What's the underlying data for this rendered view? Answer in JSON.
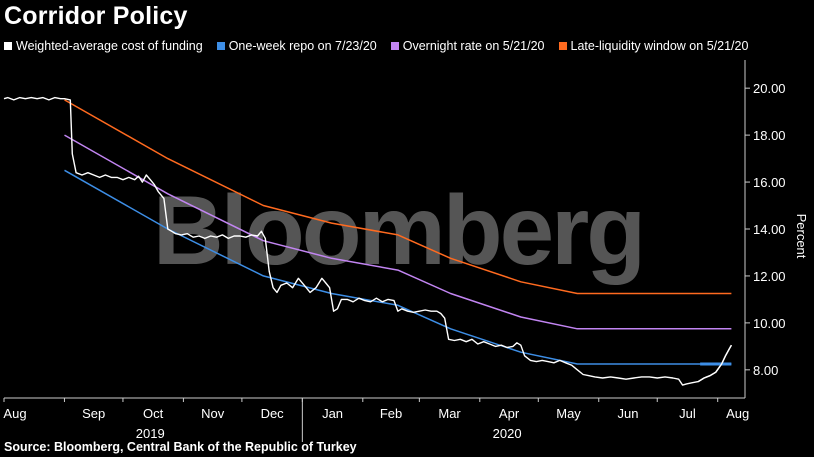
{
  "title": "Corridor Policy",
  "source": "Source: Bloomberg, Central Bank of the Republic of Turkey",
  "watermark": "Bloomberg",
  "colors": {
    "background": "#000000",
    "weighted": "#ffffff",
    "repo": "#3d8ee6",
    "overnight": "#c285f2",
    "late": "#ff6a1f",
    "axis": "#cccccc",
    "watermark": "#555555"
  },
  "chart_data": {
    "type": "line",
    "title": "Corridor Policy",
    "ylabel": "Percent",
    "xlabel": "",
    "ylim": [
      6.8,
      21.2
    ],
    "yticks": [
      "8.00",
      "10.00",
      "12.00",
      "14.00",
      "16.00",
      "18.00",
      "20.00"
    ],
    "x_domain": [
      "2019-08-01",
      "2020-08-15"
    ],
    "months": [
      {
        "label": "Aug",
        "date": "2019-08-01"
      },
      {
        "label": "Sep",
        "date": "2019-09-01"
      },
      {
        "label": "Oct",
        "date": "2019-10-01"
      },
      {
        "label": "Nov",
        "date": "2019-11-01"
      },
      {
        "label": "Dec",
        "date": "2019-12-01"
      },
      {
        "label": "Jan",
        "date": "2020-01-01"
      },
      {
        "label": "Feb",
        "date": "2020-02-01"
      },
      {
        "label": "Mar",
        "date": "2020-03-01"
      },
      {
        "label": "Apr",
        "date": "2020-04-01"
      },
      {
        "label": "May",
        "date": "2020-05-01"
      },
      {
        "label": "Jun",
        "date": "2020-06-01"
      },
      {
        "label": "Jul",
        "date": "2020-07-01"
      },
      {
        "label": "Aug",
        "date": "2020-08-01"
      }
    ],
    "years": [
      {
        "label": "2019",
        "date": "2019-10-15"
      },
      {
        "label": "2020",
        "date": "2020-04-15"
      }
    ],
    "year_divider": "2020-01-01",
    "series": [
      {
        "name": "Weighted-average cost of funding",
        "color": "#ffffff",
        "points": [
          [
            "2019-08-01",
            19.55
          ],
          [
            "2019-08-03",
            19.6
          ],
          [
            "2019-08-06",
            19.5
          ],
          [
            "2019-08-09",
            19.6
          ],
          [
            "2019-08-12",
            19.55
          ],
          [
            "2019-08-15",
            19.6
          ],
          [
            "2019-08-18",
            19.55
          ],
          [
            "2019-08-21",
            19.6
          ],
          [
            "2019-08-24",
            19.5
          ],
          [
            "2019-08-27",
            19.6
          ],
          [
            "2019-08-30",
            19.55
          ],
          [
            "2019-09-01",
            19.55
          ],
          [
            "2019-09-04",
            19.5
          ],
          [
            "2019-09-05",
            17.2
          ],
          [
            "2019-09-07",
            16.4
          ],
          [
            "2019-09-10",
            16.3
          ],
          [
            "2019-09-13",
            16.4
          ],
          [
            "2019-09-16",
            16.3
          ],
          [
            "2019-09-19",
            16.2
          ],
          [
            "2019-09-22",
            16.3
          ],
          [
            "2019-09-25",
            16.2
          ],
          [
            "2019-09-28",
            16.2
          ],
          [
            "2019-10-01",
            16.1
          ],
          [
            "2019-10-04",
            16.2
          ],
          [
            "2019-10-07",
            16.1
          ],
          [
            "2019-10-09",
            16.25
          ],
          [
            "2019-10-11",
            16.0
          ],
          [
            "2019-10-13",
            16.3
          ],
          [
            "2019-10-15",
            16.1
          ],
          [
            "2019-10-17",
            15.9
          ],
          [
            "2019-10-19",
            15.6
          ],
          [
            "2019-10-22",
            15.3
          ],
          [
            "2019-10-24",
            14.0
          ],
          [
            "2019-10-26",
            13.9
          ],
          [
            "2019-10-28",
            13.8
          ],
          [
            "2019-10-31",
            13.75
          ],
          [
            "2019-11-03",
            13.8
          ],
          [
            "2019-11-06",
            13.65
          ],
          [
            "2019-11-09",
            13.7
          ],
          [
            "2019-11-12",
            13.6
          ],
          [
            "2019-11-15",
            13.7
          ],
          [
            "2019-11-18",
            13.65
          ],
          [
            "2019-11-21",
            13.75
          ],
          [
            "2019-11-24",
            13.6
          ],
          [
            "2019-11-27",
            13.7
          ],
          [
            "2019-11-30",
            13.7
          ],
          [
            "2019-12-03",
            13.65
          ],
          [
            "2019-12-06",
            13.75
          ],
          [
            "2019-12-09",
            13.7
          ],
          [
            "2019-12-11",
            13.9
          ],
          [
            "2019-12-13",
            13.6
          ],
          [
            "2019-12-15",
            12.2
          ],
          [
            "2019-12-17",
            11.5
          ],
          [
            "2019-12-19",
            11.3
          ],
          [
            "2019-12-21",
            11.6
          ],
          [
            "2019-12-24",
            11.7
          ],
          [
            "2019-12-27",
            11.5
          ],
          [
            "2019-12-30",
            11.9
          ],
          [
            "2020-01-02",
            11.6
          ],
          [
            "2020-01-05",
            11.3
          ],
          [
            "2020-01-08",
            11.5
          ],
          [
            "2020-01-11",
            11.9
          ],
          [
            "2020-01-13",
            11.7
          ],
          [
            "2020-01-15",
            11.5
          ],
          [
            "2020-01-17",
            10.5
          ],
          [
            "2020-01-19",
            10.6
          ],
          [
            "2020-01-21",
            11.0
          ],
          [
            "2020-01-24",
            11.0
          ],
          [
            "2020-01-27",
            10.9
          ],
          [
            "2020-01-30",
            11.05
          ],
          [
            "2020-02-02",
            10.95
          ],
          [
            "2020-02-05",
            10.9
          ],
          [
            "2020-02-08",
            11.05
          ],
          [
            "2020-02-11",
            10.9
          ],
          [
            "2020-02-14",
            11.0
          ],
          [
            "2020-02-17",
            10.95
          ],
          [
            "2020-02-19",
            10.5
          ],
          [
            "2020-02-21",
            10.6
          ],
          [
            "2020-02-24",
            10.5
          ],
          [
            "2020-02-27",
            10.45
          ],
          [
            "2020-03-01",
            10.5
          ],
          [
            "2020-03-04",
            10.55
          ],
          [
            "2020-03-07",
            10.5
          ],
          [
            "2020-03-10",
            10.5
          ],
          [
            "2020-03-12",
            10.4
          ],
          [
            "2020-03-14",
            10.2
          ],
          [
            "2020-03-16",
            9.3
          ],
          [
            "2020-03-19",
            9.25
          ],
          [
            "2020-03-22",
            9.3
          ],
          [
            "2020-03-25",
            9.2
          ],
          [
            "2020-03-28",
            9.3
          ],
          [
            "2020-03-31",
            9.1
          ],
          [
            "2020-04-03",
            9.2
          ],
          [
            "2020-04-06",
            9.1
          ],
          [
            "2020-04-09",
            9.0
          ],
          [
            "2020-04-12",
            9.05
          ],
          [
            "2020-04-15",
            8.95
          ],
          [
            "2020-04-18",
            9.0
          ],
          [
            "2020-04-20",
            9.15
          ],
          [
            "2020-04-22",
            9.05
          ],
          [
            "2020-04-24",
            8.6
          ],
          [
            "2020-04-27",
            8.4
          ],
          [
            "2020-04-30",
            8.35
          ],
          [
            "2020-05-03",
            8.4
          ],
          [
            "2020-05-06",
            8.35
          ],
          [
            "2020-05-09",
            8.3
          ],
          [
            "2020-05-12",
            8.4
          ],
          [
            "2020-05-15",
            8.3
          ],
          [
            "2020-05-18",
            8.2
          ],
          [
            "2020-05-21",
            8.0
          ],
          [
            "2020-05-24",
            7.8
          ],
          [
            "2020-05-27",
            7.75
          ],
          [
            "2020-05-30",
            7.7
          ],
          [
            "2020-06-03",
            7.65
          ],
          [
            "2020-06-07",
            7.7
          ],
          [
            "2020-06-11",
            7.65
          ],
          [
            "2020-06-15",
            7.6
          ],
          [
            "2020-06-19",
            7.65
          ],
          [
            "2020-06-23",
            7.7
          ],
          [
            "2020-06-27",
            7.7
          ],
          [
            "2020-07-01",
            7.65
          ],
          [
            "2020-07-05",
            7.7
          ],
          [
            "2020-07-09",
            7.65
          ],
          [
            "2020-07-12",
            7.6
          ],
          [
            "2020-07-14",
            7.35
          ],
          [
            "2020-07-16",
            7.4
          ],
          [
            "2020-07-19",
            7.45
          ],
          [
            "2020-07-22",
            7.5
          ],
          [
            "2020-07-25",
            7.65
          ],
          [
            "2020-07-28",
            7.75
          ],
          [
            "2020-07-31",
            7.9
          ],
          [
            "2020-08-03",
            8.25
          ],
          [
            "2020-08-05",
            8.6
          ],
          [
            "2020-08-07",
            8.9
          ],
          [
            "2020-08-08",
            9.05
          ]
        ]
      },
      {
        "name": "One-week repo on 7/23/20",
        "color": "#3d8ee6",
        "points": [
          [
            "2019-09-01",
            16.5
          ],
          [
            "2019-10-24",
            14.0
          ],
          [
            "2019-12-12",
            12.0
          ],
          [
            "2020-01-16",
            11.25
          ],
          [
            "2020-02-19",
            10.75
          ],
          [
            "2020-03-17",
            9.75
          ],
          [
            "2020-04-22",
            8.75
          ],
          [
            "2020-05-21",
            8.25
          ],
          [
            "2020-08-08",
            8.25
          ]
        ]
      },
      {
        "name": "Overnight rate on 5/21/20",
        "color": "#c285f2",
        "points": [
          [
            "2019-09-01",
            18.0
          ],
          [
            "2019-10-24",
            15.5
          ],
          [
            "2019-12-12",
            13.5
          ],
          [
            "2020-01-16",
            12.75
          ],
          [
            "2020-02-19",
            12.25
          ],
          [
            "2020-03-17",
            11.25
          ],
          [
            "2020-04-22",
            10.25
          ],
          [
            "2020-05-21",
            9.75
          ],
          [
            "2020-08-08",
            9.75
          ]
        ]
      },
      {
        "name": "Late-liquidity window on 5/21/20",
        "color": "#ff6a1f",
        "points": [
          [
            "2019-09-01",
            19.5
          ],
          [
            "2019-10-24",
            17.0
          ],
          [
            "2019-12-12",
            15.0
          ],
          [
            "2020-01-16",
            14.25
          ],
          [
            "2020-02-19",
            13.75
          ],
          [
            "2020-03-17",
            12.75
          ],
          [
            "2020-04-22",
            11.75
          ],
          [
            "2020-05-21",
            11.25
          ],
          [
            "2020-08-08",
            11.25
          ]
        ]
      }
    ],
    "repo_highlight": {
      "start": "2020-07-23",
      "end": "2020-08-08",
      "value": 8.25
    }
  }
}
